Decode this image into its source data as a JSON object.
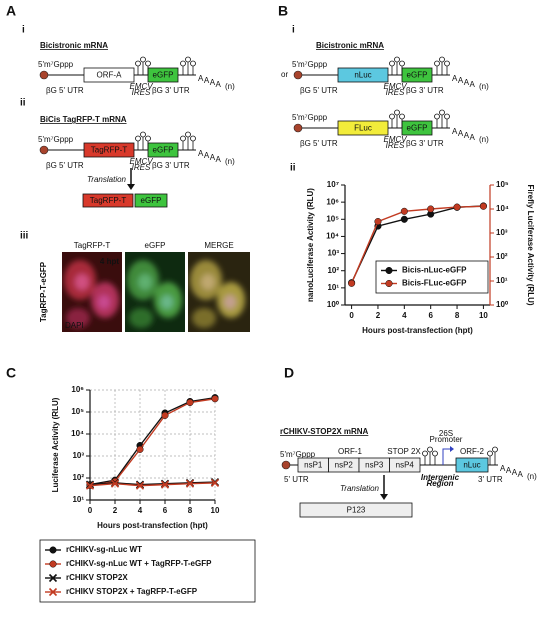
{
  "panels": {
    "A": {
      "letter": "A",
      "i": {
        "numeral": "i",
        "title": "Bicistronic mRNA",
        "construct": {
          "cap": "5'm⁷Gppp",
          "orfs": [
            {
              "label": "ORF-A",
              "color": "#ffffff"
            },
            {
              "label": "eGFP",
              "color": "#3ec43e"
            }
          ],
          "utr5": "βG 5' UTR",
          "ires": [
            "EMCV",
            "IRES"
          ],
          "utr3": "βG 3' UTR",
          "poly_a": "AAAA",
          "poly_n": "(n)"
        }
      },
      "ii": {
        "numeral": "ii",
        "title": "BiCis TagRFP-T mRNA",
        "construct": {
          "cap": "5'm⁷Gppp",
          "orfs": [
            {
              "label": "TagRFP-T",
              "color": "#d8392b"
            },
            {
              "label": "eGFP",
              "color": "#3ec43e"
            }
          ],
          "utr5": "βG 5' UTR",
          "ires": [
            "EMCV",
            "IRES"
          ],
          "utr3": "βG 3' UTR",
          "poly_a": "AAAA",
          "poly_n": "(n)"
        },
        "translation": "Translation",
        "products": [
          {
            "label": "TagRFP-T",
            "color": "#d8392b"
          },
          {
            "label": "eGFP",
            "color": "#3ec43e"
          }
        ]
      },
      "iii": {
        "numeral": "iii",
        "channels": [
          "TagRFP-T",
          "eGFP",
          "MERGE"
        ],
        "time": "4 hpt",
        "stain": "DAPI",
        "side_label": "TagRFP-T-eGFP"
      }
    },
    "B": {
      "letter": "B",
      "i": {
        "numeral": "i",
        "title": "Bicistronic mRNA",
        "connector": "or",
        "constructs": [
          {
            "cap": "5'm⁷Gppp",
            "orfs": [
              {
                "label": "nLuc",
                "color": "#5cc8e0"
              },
              {
                "label": "eGFP",
                "color": "#3ec43e"
              }
            ],
            "utr5": "βG 5' UTR",
            "ires": [
              "EMCV",
              "IRES"
            ],
            "utr3": "βG 3' UTR",
            "poly_a": "AAAA",
            "poly_n": "(n)"
          },
          {
            "cap": "5'm⁷Gppp",
            "orfs": [
              {
                "label": "FLuc",
                "color": "#f2ec3a"
              },
              {
                "label": "eGFP",
                "color": "#3ec43e"
              }
            ],
            "utr5": "βG 5' UTR",
            "ires": [
              "EMCV",
              "IRES"
            ],
            "utr3": "βG 3' UTR",
            "poly_a": "AAAA",
            "poly_n": "(n)"
          }
        ]
      },
      "ii": {
        "numeral": "ii"
      }
    },
    "C": {
      "letter": "C"
    },
    "D": {
      "letter": "D",
      "title": "rCHIKV-STOP2X mRNA",
      "cap": "5'm⁷Gppp",
      "orf1": "ORF-1",
      "nsps": [
        "nsP1",
        "nsP2",
        "nsP3",
        "nsP4"
      ],
      "stop": "STOP 2X",
      "promoter": [
        "26S",
        "Promoter"
      ],
      "orf2": "ORF-2",
      "reporter": "nLuc",
      "utr5": "5' UTR",
      "intergenic": [
        "Intergenic",
        "Region"
      ],
      "utr3": "3' UTR",
      "poly_a": "AAAA",
      "poly_n": "(n)",
      "translation": "Translation",
      "product": "P123"
    }
  },
  "chart_data": [
    {
      "type": "line",
      "x": [
        0,
        2,
        4,
        6,
        8,
        10
      ],
      "xlim": [
        -0.5,
        10.5
      ],
      "xticks": [
        0,
        2,
        4,
        6,
        8,
        10
      ],
      "xlabel": "Hours post-transfection (hpt)",
      "ylabel": "nanoLuciferase Activity (RLU)",
      "y2label": "Firefly Luciferase Activity (RLU)",
      "log_y": true,
      "grid": false,
      "legend": "lower-right",
      "ylim": [
        1,
        10000000
      ],
      "yticks": [
        {
          "value": 1,
          "label": "10⁰"
        },
        {
          "value": 10,
          "label": "10¹"
        },
        {
          "value": 100,
          "label": "10²"
        },
        {
          "value": 1000,
          "label": "10³"
        },
        {
          "value": 10000,
          "label": "10⁴"
        },
        {
          "value": 100000,
          "label": "10⁵"
        },
        {
          "value": 1000000,
          "label": "10⁶"
        },
        {
          "value": 10000000,
          "label": "10⁷"
        }
      ],
      "y2lim": [
        1,
        100000
      ],
      "y2ticks": [
        {
          "value": 1,
          "label": "10⁰"
        },
        {
          "value": 10,
          "label": "10¹"
        },
        {
          "value": 100,
          "label": "10²"
        },
        {
          "value": 1000,
          "label": "10³"
        },
        {
          "value": 10000,
          "label": "10⁴"
        },
        {
          "value": 100000,
          "label": "10⁵"
        }
      ],
      "y2color": "#c23b22",
      "series": [
        {
          "name": "Bicis-nLuc-eGFP",
          "color": "#111111",
          "marker": "circle",
          "values": [
            20,
            40000,
            100000,
            200000,
            500000,
            600000
          ]
        },
        {
          "name": "Bicis-FLuc-eGFP",
          "color": "#c23b22",
          "marker": "circle",
          "axis": "y2",
          "values": [
            8,
            3000,
            8000,
            10000,
            12000,
            13000
          ]
        }
      ]
    },
    {
      "type": "line",
      "x": [
        0,
        2,
        4,
        6,
        8,
        10
      ],
      "xlim": [
        0,
        10
      ],
      "xticks": [
        0,
        2,
        4,
        6,
        8,
        10
      ],
      "xlabel": "Hours post-transfection (hpt)",
      "ylabel": "Luciferase Activity (RLU)",
      "log_y": true,
      "grid": true,
      "legend": "below",
      "ylim": [
        10,
        1000000
      ],
      "yticks": [
        {
          "value": 10,
          "label": "10¹"
        },
        {
          "value": 100,
          "label": "10²"
        },
        {
          "value": 1000,
          "label": "10³"
        },
        {
          "value": 10000,
          "label": "10⁴"
        },
        {
          "value": 100000,
          "label": "10⁵"
        },
        {
          "value": 1000000,
          "label": "10⁶"
        }
      ],
      "series": [
        {
          "name": "rCHIKV-sg-nLuc WT",
          "color": "#111111",
          "marker": "circle",
          "values": [
            50,
            80,
            3000,
            90000,
            300000,
            450000
          ]
        },
        {
          "name": "rCHIKV-sg-nLuc WT + TagRFP-T-eGFP",
          "color": "#c23b22",
          "marker": "circle",
          "values": [
            45,
            70,
            2000,
            70000,
            270000,
            400000
          ]
        },
        {
          "name": "rCHIKV STOP2X",
          "color": "#111111",
          "marker": "x",
          "values": [
            50,
            60,
            50,
            55,
            60,
            65
          ]
        },
        {
          "name": "rCHIKV STOP2X + TagRFP-T-eGFP",
          "color": "#c23b22",
          "marker": "x",
          "values": [
            45,
            55,
            45,
            50,
            55,
            60
          ]
        }
      ]
    }
  ]
}
